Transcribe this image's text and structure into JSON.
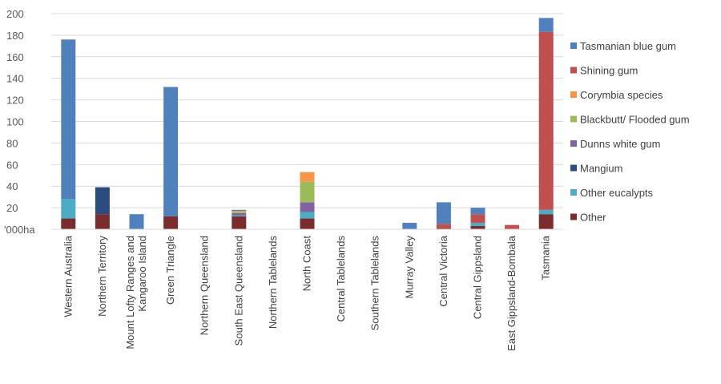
{
  "chart_data": {
    "type": "bar",
    "stacked": true,
    "y_unit_label": "'000ha",
    "ylim": [
      0,
      200
    ],
    "yticks": [
      20,
      40,
      60,
      80,
      100,
      120,
      140,
      160,
      180,
      200
    ],
    "grid": true,
    "legend_position": "right",
    "categories": [
      "Western Australia",
      "Northern Territory",
      "Mount Lofty Ranges and Kangaroo Island",
      "Green Triangle",
      "Northern Queensland",
      "South East Queensland",
      "Northern Tablelands",
      "North Coast",
      "Central Tablelands",
      "Southern Tablelands",
      "Murray Valley",
      "Central Victoria",
      "Central Gippsland",
      "East Gippsland-Bombala",
      "Tasmania"
    ],
    "category_lines": [
      [
        "Western Australia"
      ],
      [
        "Northern Territory"
      ],
      [
        "Mount Lofty Ranges and",
        "Kangaroo Island"
      ],
      [
        "Green Triangle"
      ],
      [
        "Northern Queensland"
      ],
      [
        "South East Queensland"
      ],
      [
        "Northern Tablelands"
      ],
      [
        "North Coast"
      ],
      [
        "Central Tablelands"
      ],
      [
        "Southern Tablelands"
      ],
      [
        "Murray Valley"
      ],
      [
        "Central Victoria"
      ],
      [
        "Central Gippsland"
      ],
      [
        "East Gippsland-Bombala"
      ],
      [
        "Tasmania"
      ]
    ],
    "series": [
      {
        "name": "Other",
        "color": "#7B2C2C",
        "values": [
          10,
          14,
          0,
          12,
          0,
          12,
          0,
          10,
          0,
          0,
          0,
          1,
          3,
          0,
          14
        ]
      },
      {
        "name": "Other eucalypts",
        "color": "#4BACC6",
        "values": [
          18,
          0,
          0,
          0,
          0,
          1,
          0,
          6,
          0,
          0,
          0,
          0,
          3,
          0,
          4
        ]
      },
      {
        "name": "Mangium",
        "color": "#2B4C7E",
        "values": [
          0,
          25,
          0,
          0,
          0,
          0,
          0,
          0,
          0,
          0,
          0,
          0,
          0,
          0,
          0
        ]
      },
      {
        "name": "Dunns white gum",
        "color": "#8064A2",
        "values": [
          0,
          0,
          0,
          0,
          0,
          2,
          0,
          9,
          0,
          0,
          0,
          0,
          0,
          0,
          0
        ]
      },
      {
        "name": "Blackbutt/ Flooded gum",
        "color": "#9BBB59",
        "values": [
          0,
          0,
          0,
          0,
          0,
          1,
          0,
          19,
          0,
          0,
          0,
          0,
          0,
          0,
          0
        ]
      },
      {
        "name": "Corymbia species",
        "color": "#F79646",
        "values": [
          0,
          0,
          0,
          0,
          0,
          1,
          0,
          9,
          0,
          0,
          0,
          0,
          0,
          0,
          0
        ]
      },
      {
        "name": "Shining gum",
        "color": "#C0504D",
        "values": [
          0,
          0,
          0,
          0,
          0,
          0,
          0,
          0,
          0,
          0,
          0,
          4,
          8,
          4,
          165
        ]
      },
      {
        "name": "Tasmanian blue gum",
        "color": "#4F81BD",
        "values": [
          148,
          0,
          14,
          120,
          0,
          1,
          0,
          0,
          0,
          0,
          6,
          20,
          6,
          0,
          13
        ]
      }
    ],
    "legend_order": [
      "Tasmanian blue gum",
      "Shining gum",
      "Corymbia species",
      "Blackbutt/ Flooded gum",
      "Dunns white gum",
      "Mangium",
      "Other eucalypts",
      "Other"
    ]
  }
}
